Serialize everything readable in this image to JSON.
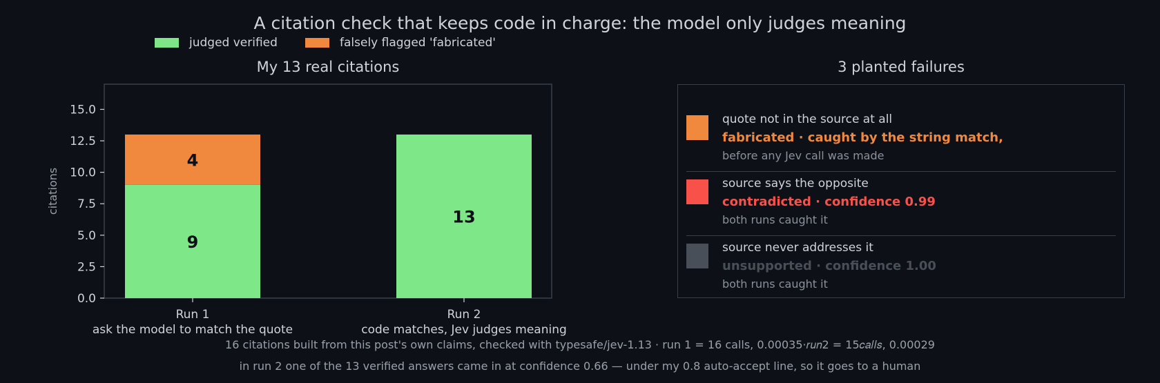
{
  "title": "A citation check that keeps code in charge: the model only judges meaning",
  "legend": [
    {
      "label": "judged verified",
      "color": "#7ee787"
    },
    {
      "label": "falsely flagged 'fabricated'",
      "color": "#f0883e"
    }
  ],
  "chart_data": {
    "type": "bar",
    "stacked": true,
    "title": "My 13 real citations",
    "ylabel": "citations",
    "ylim": [
      0,
      17
    ],
    "yticks": [
      "0.0",
      "2.5",
      "5.0",
      "7.5",
      "10.0",
      "12.5",
      "15.0"
    ],
    "categories": [
      "Run 1\nask the model to match the quote",
      "Run 2\ncode matches, Jev judges meaning"
    ],
    "category_lines": [
      [
        "Run 1",
        "ask the model to match the quote"
      ],
      [
        "Run 2",
        "code matches, Jev judges meaning"
      ]
    ],
    "series": [
      {
        "name": "judged verified",
        "values": [
          9,
          13
        ],
        "color": "#7ee787"
      },
      {
        "name": "falsely flagged 'fabricated'",
        "values": [
          4,
          0
        ],
        "color": "#f0883e"
      }
    ],
    "data_labels": [
      [
        "9",
        "13"
      ],
      [
        "4",
        ""
      ]
    ]
  },
  "failures": {
    "title": "3 planted failures",
    "items": [
      {
        "swatch": "#f0883e",
        "line1": "quote not in the source at all",
        "line2": "fabricated · caught by the string match,",
        "line2_color": "#f0883e",
        "line3": "before any Jev call was made"
      },
      {
        "swatch": "#f85149",
        "line1": "source says the opposite",
        "line2": "contradicted · confidence 0.99",
        "line2_color": "#f85149",
        "line3": "both runs caught it"
      },
      {
        "swatch": "#484f58",
        "line1": "source never addresses it",
        "line2": "unsupported · confidence 1.00",
        "line2_color": "#484f58",
        "line3": "both runs caught it"
      }
    ]
  },
  "footer": {
    "line1": "16 citations built from this post's own claims, checked with typesafe/jev-1.13 · run 1 = 16 calls, 0.00035·𝑟𝑢𝑛2 = 15𝑐𝑎𝑙𝑙𝑠, 0.00029",
    "line2": "in run 2 one of the 13 verified answers came in at confidence 0.66 — under my 0.8 auto-accept line, so it goes to a human"
  }
}
